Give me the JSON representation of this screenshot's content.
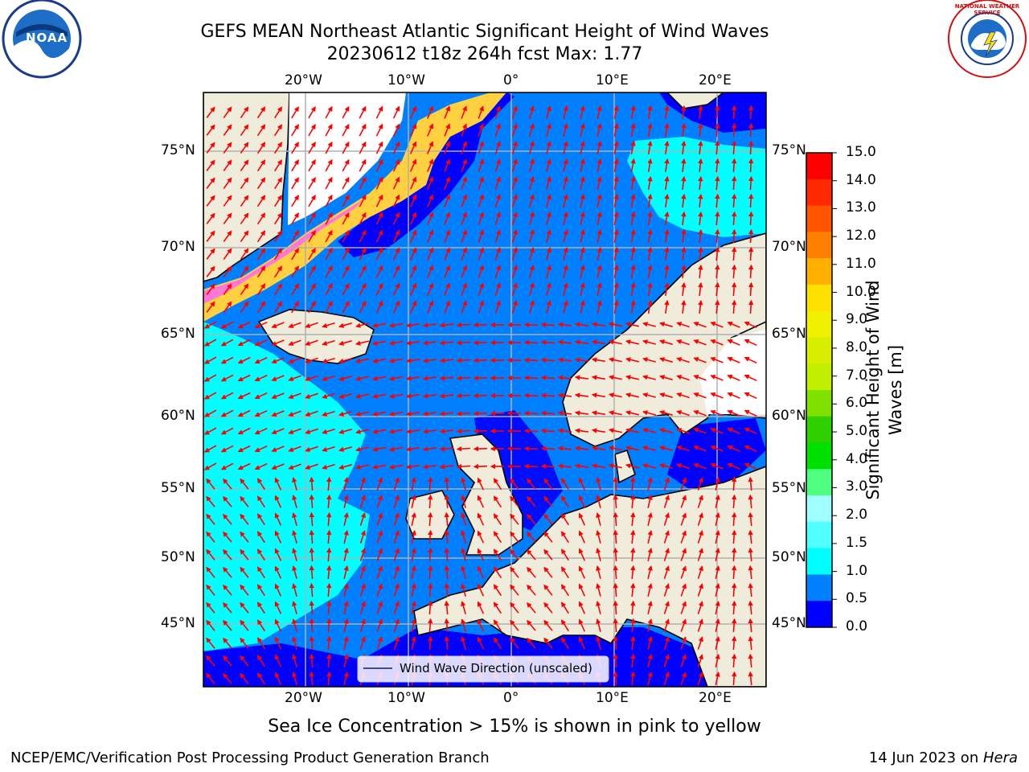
{
  "title": {
    "line1": "GEFS MEAN Northeast Atlantic Significant Height of Wind Waves",
    "line2": "20230612 t18z 264h fcst   Max: 1.77"
  },
  "note": "Sea Ice Concentration > 15% is shown in pink to yellow",
  "footer": {
    "left": "NCEP/EMC/Verification Post Processing Product Generation Branch",
    "right_date": "14 Jun 2023 on ",
    "right_host": "Hera"
  },
  "logos": {
    "noaa_text": "NOAA",
    "nws_text": "NATIONAL WEATHER SERVICE"
  },
  "legend": {
    "label": "Wind Wave Direction (unscaled)"
  },
  "axes": {
    "lon_labels": [
      "20°W",
      "10°W",
      "0°",
      "10°E",
      "20°E"
    ],
    "lat_labels": [
      "75°N",
      "70°N",
      "65°N",
      "60°N",
      "55°N",
      "50°N",
      "45°N"
    ]
  },
  "colorbar": {
    "title_line1": "Significant Height of Wind",
    "title_line2": "Waves [m]",
    "ticks": [
      "15.0",
      "14.0",
      "13.0",
      "12.0",
      "11.0",
      "10.0",
      "9.0",
      "8.0",
      "7.0",
      "6.0",
      "5.0",
      "4.0",
      "3.0",
      "2.0",
      "1.5",
      "1.0",
      "0.5",
      "0.0"
    ],
    "colors": [
      "#ff0000",
      "#ff2a00",
      "#ff5500",
      "#ff8000",
      "#ffb000",
      "#ffe100",
      "#f0f000",
      "#d8f000",
      "#c0f000",
      "#80e000",
      "#30d000",
      "#00e000",
      "#50ff80",
      "#a0ffff",
      "#50ffff",
      "#00ffff",
      "#0080ff",
      "#0000ff"
    ]
  },
  "colors": {
    "land": "#efecdc",
    "sea_low": "#0080ff",
    "sea_dark": "#0000ff",
    "sea_cyan": "#00ffff",
    "ice": "#ffffff",
    "arrow": "#ff0000",
    "grid": "#b0b0b0"
  }
}
